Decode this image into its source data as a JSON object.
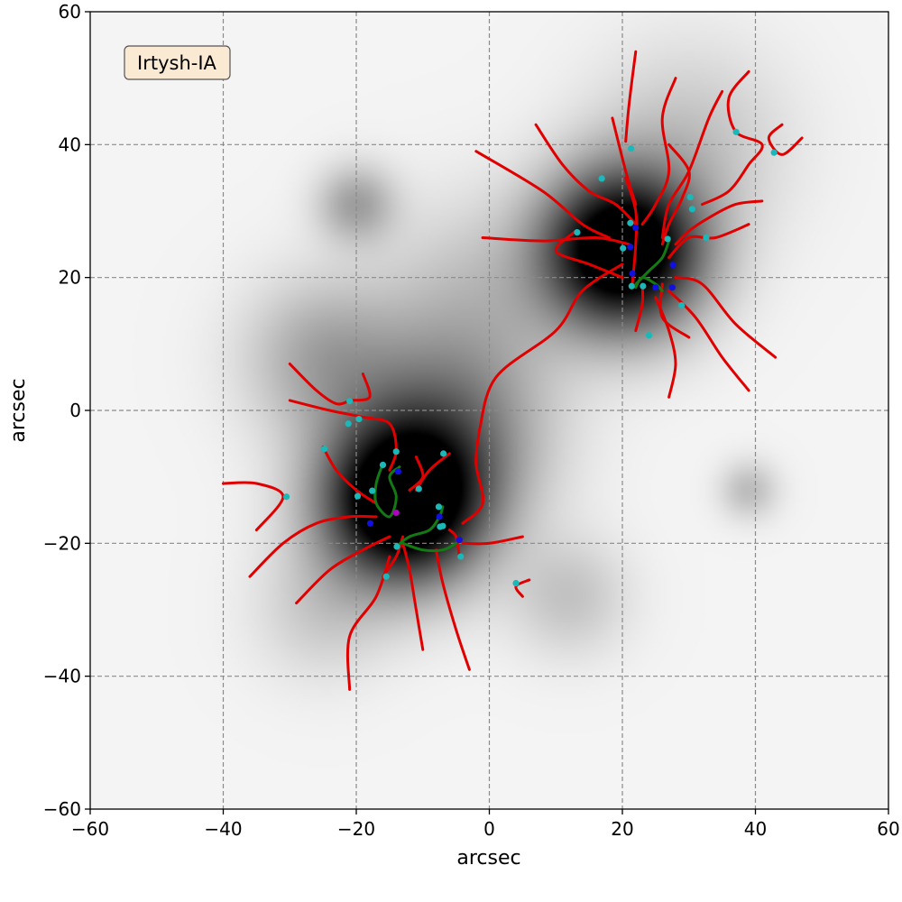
{
  "chart_data": {
    "type": "scatter",
    "annotation": "Irtysh-IA",
    "xlabel": "arcsec",
    "ylabel": "arcsec",
    "xlim": [
      -60,
      60
    ],
    "ylim": [
      -60,
      60
    ],
    "x_ticks": [
      -60,
      -40,
      -20,
      0,
      20,
      40,
      60
    ],
    "y_ticks": [
      -60,
      -40,
      -20,
      0,
      20,
      40,
      60
    ],
    "x_tick_labels": [
      "−60",
      "−40",
      "−20",
      "0",
      "20",
      "40",
      "60"
    ],
    "y_tick_labels": [
      "−60",
      "−40",
      "−20",
      "0",
      "20",
      "40",
      "60"
    ],
    "grid": true,
    "colors": {
      "filament": "#e00000",
      "bridge": "#137a13",
      "node": "#1ab8b8",
      "saddle": "#1010e0",
      "peak": "#b000c0",
      "badge_fill": "#fbead3"
    },
    "background_sources": [
      {
        "x": 20,
        "y": 24,
        "amp": 1.0,
        "sigma": 8
      },
      {
        "x": -13,
        "y": -14,
        "amp": 1.0,
        "sigma": 8
      },
      {
        "x": -7,
        "y": -3,
        "amp": 0.35,
        "sigma": 10
      },
      {
        "x": -20,
        "y": 31,
        "amp": 0.22,
        "sigma": 4
      },
      {
        "x": -25,
        "y": 8,
        "amp": 0.2,
        "sigma": 8
      },
      {
        "x": -2,
        "y": 17,
        "amp": 0.12,
        "sigma": 10
      },
      {
        "x": 39,
        "y": -12,
        "amp": 0.14,
        "sigma": 3
      },
      {
        "x": 12,
        "y": -28,
        "amp": 0.12,
        "sigma": 6
      },
      {
        "x": -25,
        "y": -30,
        "amp": 0.1,
        "sigma": 7
      },
      {
        "x": 30,
        "y": 40,
        "amp": 0.12,
        "sigma": 10
      }
    ],
    "filaments": [
      [
        [
          -2,
          39
        ],
        [
          8,
          33
        ],
        [
          14,
          28
        ],
        [
          18,
          26
        ]
      ],
      [
        [
          -1,
          26
        ],
        [
          8,
          25.5
        ],
        [
          16,
          26
        ],
        [
          21,
          25
        ]
      ],
      [
        [
          7,
          43
        ],
        [
          11,
          37
        ],
        [
          15,
          33
        ],
        [
          19,
          31
        ],
        [
          22,
          28
        ]
      ],
      [
        [
          18.5,
          44
        ],
        [
          20.5,
          36
        ],
        [
          22,
          31
        ]
      ],
      [
        [
          22,
          54
        ],
        [
          21,
          46
        ],
        [
          20.5,
          40.5
        ]
      ],
      [
        [
          28,
          50
        ],
        [
          26,
          44
        ],
        [
          27,
          36
        ],
        [
          25,
          31
        ],
        [
          23,
          28
        ]
      ],
      [
        [
          27,
          40
        ],
        [
          30,
          36
        ],
        [
          29,
          32
        ],
        [
          27,
          28
        ],
        [
          26,
          25
        ]
      ],
      [
        [
          35,
          48
        ],
        [
          33,
          44
        ],
        [
          30,
          36
        ],
        [
          27,
          31
        ],
        [
          26,
          26
        ]
      ],
      [
        [
          39,
          51
        ],
        [
          36,
          47
        ],
        [
          37,
          42
        ],
        [
          41,
          40
        ],
        [
          39,
          37
        ],
        [
          36,
          33
        ],
        [
          32,
          31
        ]
      ],
      [
        [
          44,
          43
        ],
        [
          42,
          41
        ],
        [
          44,
          38.5
        ],
        [
          47,
          41
        ]
      ],
      [
        [
          41,
          31.5
        ],
        [
          37,
          31
        ],
        [
          33,
          29
        ],
        [
          30,
          27
        ],
        [
          28,
          25
        ]
      ],
      [
        [
          39,
          28
        ],
        [
          34,
          26
        ],
        [
          30,
          26
        ],
        [
          27,
          23
        ]
      ],
      [
        [
          43,
          8
        ],
        [
          37,
          13
        ],
        [
          32,
          19
        ],
        [
          28,
          20
        ]
      ],
      [
        [
          39,
          3
        ],
        [
          35,
          8
        ],
        [
          31,
          14
        ],
        [
          27,
          18
        ]
      ],
      [
        [
          27,
          2
        ],
        [
          28,
          7
        ],
        [
          27,
          12
        ],
        [
          25,
          17
        ]
      ],
      [
        [
          30,
          11
        ],
        [
          26,
          14
        ],
        [
          26,
          19
        ]
      ],
      [
        [
          22,
          12
        ],
        [
          23,
          16
        ],
        [
          23,
          19
        ]
      ],
      [
        [
          20.5,
          35
        ],
        [
          22,
          30
        ],
        [
          22,
          25
        ],
        [
          21.5,
          19
        ]
      ],
      [
        [
          13,
          27
        ],
        [
          10,
          24
        ],
        [
          15,
          22
        ],
        [
          20,
          20
        ]
      ],
      [
        [
          -1.5,
          -3
        ],
        [
          1,
          5
        ],
        [
          10,
          12
        ],
        [
          14,
          18
        ],
        [
          20,
          22
        ]
      ],
      [
        [
          -1.5,
          -3
        ],
        [
          -2,
          -8
        ],
        [
          -1,
          -14
        ],
        [
          -4,
          -17
        ]
      ],
      [
        [
          -30,
          7
        ],
        [
          -26,
          3
        ],
        [
          -23,
          1
        ],
        [
          -21,
          1.5
        ]
      ],
      [
        [
          -19,
          5.5
        ],
        [
          -18,
          2
        ],
        [
          -21,
          1.5
        ]
      ],
      [
        [
          -30,
          1.5
        ],
        [
          -24,
          0
        ],
        [
          -19,
          -1
        ],
        [
          -15,
          -2
        ],
        [
          -14,
          -6
        ],
        [
          -15,
          -9
        ]
      ],
      [
        [
          -25,
          -5.5
        ],
        [
          -23,
          -9
        ],
        [
          -20,
          -12
        ],
        [
          -17,
          -14
        ]
      ],
      [
        [
          -40,
          -11
        ],
        [
          -35,
          -11
        ],
        [
          -31,
          -13
        ],
        [
          -35,
          -18
        ]
      ],
      [
        [
          -36,
          -25
        ],
        [
          -31,
          -20
        ],
        [
          -26,
          -17
        ],
        [
          -21,
          -16
        ],
        [
          -17,
          -16
        ]
      ],
      [
        [
          -29,
          -29
        ],
        [
          -24,
          -24
        ],
        [
          -19,
          -21
        ],
        [
          -15,
          -19
        ]
      ],
      [
        [
          -21,
          -42
        ],
        [
          -21,
          -34
        ],
        [
          -17,
          -28
        ],
        [
          -15,
          -22
        ]
      ],
      [
        [
          -16,
          -25
        ],
        [
          -14,
          -22
        ],
        [
          -13,
          -19
        ]
      ],
      [
        [
          -10,
          -36
        ],
        [
          -11,
          -30
        ],
        [
          -12,
          -24
        ],
        [
          -13,
          -20
        ]
      ],
      [
        [
          -3,
          -39
        ],
        [
          -5,
          -33
        ],
        [
          -7,
          -26
        ],
        [
          -8,
          -21
        ]
      ],
      [
        [
          -11,
          -7
        ],
        [
          -10,
          -10
        ],
        [
          -12,
          -12
        ]
      ],
      [
        [
          -6,
          -6.5
        ],
        [
          -9,
          -9
        ],
        [
          -11,
          -12
        ]
      ],
      [
        [
          -4.5,
          -22
        ],
        [
          -5,
          -19
        ],
        [
          -6,
          -18
        ]
      ],
      [
        [
          5,
          -28
        ],
        [
          4,
          -26.5
        ],
        [
          6,
          -25.5
        ]
      ],
      [
        [
          -4,
          -20
        ],
        [
          0,
          -20
        ],
        [
          5,
          -19
        ]
      ]
    ],
    "bridges": [
      [
        [
          -16,
          -8
        ],
        [
          -17,
          -11
        ],
        [
          -17,
          -14
        ],
        [
          -15,
          -16
        ],
        [
          -14,
          -13
        ],
        [
          -15,
          -10
        ],
        [
          -13.5,
          -8.5
        ]
      ],
      [
        [
          -14,
          -20.5
        ],
        [
          -12,
          -19
        ],
        [
          -9,
          -18
        ],
        [
          -7.5,
          -16
        ],
        [
          -7,
          -14.5
        ]
      ],
      [
        [
          -13,
          -20
        ],
        [
          -10,
          -21
        ],
        [
          -7,
          -21
        ],
        [
          -5,
          -20
        ]
      ],
      [
        [
          22,
          19
        ],
        [
          24,
          21
        ],
        [
          26,
          23
        ],
        [
          27,
          25.5
        ]
      ],
      [
        [
          22,
          18.5
        ],
        [
          23,
          20
        ],
        [
          25,
          19
        ],
        [
          26,
          18
        ]
      ]
    ],
    "nodes": [
      [
        16.9,
        34.9
      ],
      [
        21.3,
        39.4
      ],
      [
        37.1,
        41.9
      ],
      [
        42.8,
        38.8
      ],
      [
        30.2,
        32.1
      ],
      [
        30.5,
        30.3
      ],
      [
        21.2,
        28.2
      ],
      [
        13.2,
        26.8
      ],
      [
        20.1,
        24.4
      ],
      [
        26.8,
        25.8
      ],
      [
        32.6,
        26.0
      ],
      [
        23.1,
        18.7
      ],
      [
        21.4,
        18.7
      ],
      [
        28.9,
        15.8
      ],
      [
        24.0,
        11.3
      ],
      [
        -21.0,
        1.4
      ],
      [
        -19.6,
        -1.3
      ],
      [
        -21.2,
        -2.0
      ],
      [
        -24.8,
        -5.8
      ],
      [
        -14.0,
        -6.2
      ],
      [
        -6.9,
        -6.5
      ],
      [
        -16.0,
        -8.2
      ],
      [
        -19.8,
        -12.9
      ],
      [
        -17.6,
        -12.1
      ],
      [
        -10.6,
        -11.8
      ],
      [
        -30.5,
        -13.0
      ],
      [
        -7.6,
        -14.5
      ],
      [
        -7.4,
        -17.5
      ],
      [
        -7.0,
        -17.4
      ],
      [
        -13.9,
        -20.5
      ],
      [
        -4.3,
        -22.0
      ],
      [
        -15.5,
        -25.0
      ],
      [
        4.0,
        -26.0
      ]
    ],
    "saddles": [
      [
        21.2,
        24.6
      ],
      [
        22.0,
        27.5
      ],
      [
        27.6,
        21.9
      ],
      [
        21.5,
        20.6
      ],
      [
        25.0,
        18.5
      ],
      [
        27.5,
        18.5
      ],
      [
        -13.7,
        -9.2
      ],
      [
        -17.9,
        -17.0
      ],
      [
        -7.5,
        -16.0
      ],
      [
        -4.5,
        -19.5
      ]
    ],
    "peaks": [
      [
        -14.0,
        -15.4
      ]
    ]
  }
}
